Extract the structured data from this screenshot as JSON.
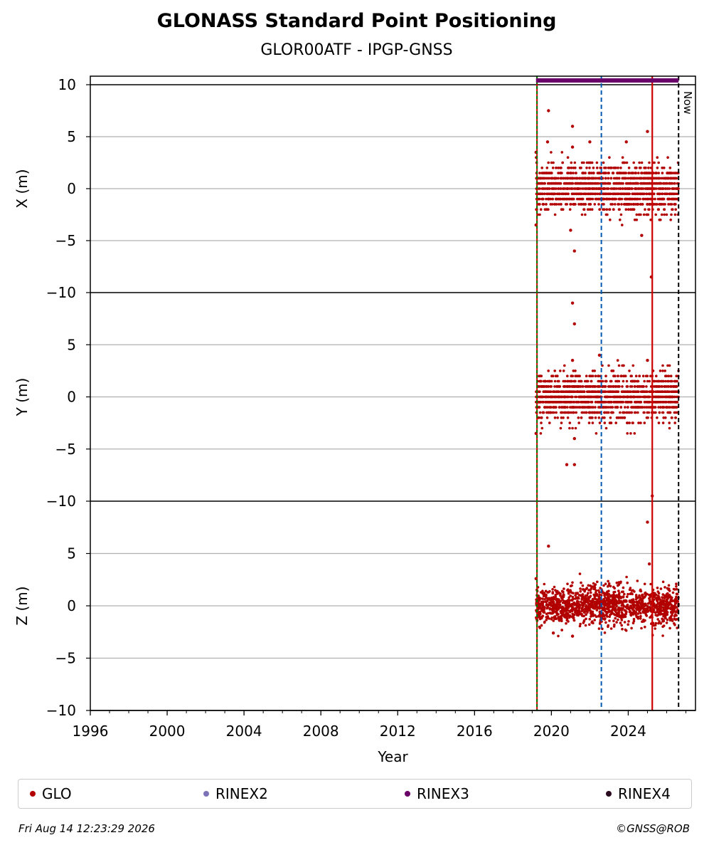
{
  "title": "GLONASS Standard Point Positioning",
  "subtitle": "GLOR00ATF - IPGP-GNSS",
  "footer": {
    "timestamp": "Fri Aug 14 12:23:29 2026",
    "credit": "©GNSS@ROB"
  },
  "colors": {
    "glo": "#b20000",
    "rinex2": "#7b72b8",
    "rinex3": "#6a006a",
    "rinex4": "#2a0a1e",
    "green_line": "#007a00",
    "blue_dashed": "#0058b0",
    "red_line": "#cc0000",
    "grid": "#b0b0b0"
  },
  "legend": [
    {
      "label": "GLO",
      "color": "#b20000"
    },
    {
      "label": "RINEX2",
      "color": "#7b72b8"
    },
    {
      "label": "RINEX3",
      "color": "#6a006a"
    },
    {
      "label": "RINEX4",
      "color": "#2a0a1e"
    }
  ],
  "chart_data": {
    "type": "scatter",
    "xlabel": "Year",
    "xlim": [
      1996,
      2027.5
    ],
    "xticks": [
      "1996",
      "2000",
      "2004",
      "2008",
      "2012",
      "2016",
      "2020",
      "2024"
    ],
    "events": {
      "green_line": 2019.25,
      "blue_dashed": 2022.6,
      "red_line": 2025.25,
      "now": 2026.62,
      "now_label": "Now"
    },
    "rinex3_span": [
      2019.2,
      2026.62
    ],
    "panels": [
      {
        "ylabel": "X (m)",
        "ylim": [
          -10,
          10
        ],
        "yticks": [
          "10",
          "5",
          "0",
          "−5",
          "−10"
        ],
        "series": "GLO",
        "data_range": [
          2019.2,
          2026.62
        ],
        "typical_spread": [
          -2.5,
          2.5
        ],
        "outliers": [
          {
            "x": 2019.2,
            "y": 3.5
          },
          {
            "x": 2019.2,
            "y": -3.5
          },
          {
            "x": 2019.85,
            "y": 7.5
          },
          {
            "x": 2019.8,
            "y": 4.5
          },
          {
            "x": 2021.1,
            "y": 6.0
          },
          {
            "x": 2021.1,
            "y": 4.0
          },
          {
            "x": 2021.2,
            "y": -6.0
          },
          {
            "x": 2021.0,
            "y": -4.0
          },
          {
            "x": 2022.0,
            "y": 4.5
          },
          {
            "x": 2023.9,
            "y": 4.5
          },
          {
            "x": 2025.0,
            "y": 5.5
          },
          {
            "x": 2025.2,
            "y": -8.5
          },
          {
            "x": 2024.7,
            "y": -4.5
          }
        ]
      },
      {
        "ylabel": "Y (m)",
        "ylim": [
          -10,
          10
        ],
        "yticks": [
          "5",
          "0",
          "−5",
          "−10"
        ],
        "series": "GLO",
        "data_range": [
          2019.2,
          2026.62
        ],
        "typical_spread": [
          -2.5,
          2.5
        ],
        "outliers": [
          {
            "x": 2021.1,
            "y": 9.0
          },
          {
            "x": 2021.2,
            "y": 7.0
          },
          {
            "x": 2021.1,
            "y": 3.5
          },
          {
            "x": 2020.8,
            "y": -6.5
          },
          {
            "x": 2021.2,
            "y": -6.5
          },
          {
            "x": 2021.2,
            "y": -4.0
          },
          {
            "x": 2019.2,
            "y": -3.5
          },
          {
            "x": 2022.5,
            "y": 4.0
          },
          {
            "x": 2025.25,
            "y": -9.5
          },
          {
            "x": 2025.0,
            "y": 3.5
          }
        ]
      },
      {
        "ylabel": "Z (m)",
        "ylim": [
          -10,
          10
        ],
        "yticks": [
          "5",
          "0",
          "−5",
          "−10"
        ],
        "series": "GLO",
        "data_range": [
          2019.2,
          2026.62
        ],
        "typical_spread": [
          -2.2,
          2.2
        ],
        "outliers": [
          {
            "x": 2019.2,
            "y": 2.6
          },
          {
            "x": 2019.85,
            "y": 5.7
          },
          {
            "x": 2025.0,
            "y": 8.0
          },
          {
            "x": 2025.1,
            "y": 4.0
          },
          {
            "x": 2020.1,
            "y": -2.6
          },
          {
            "x": 2021.1,
            "y": -2.9
          }
        ]
      }
    ]
  }
}
